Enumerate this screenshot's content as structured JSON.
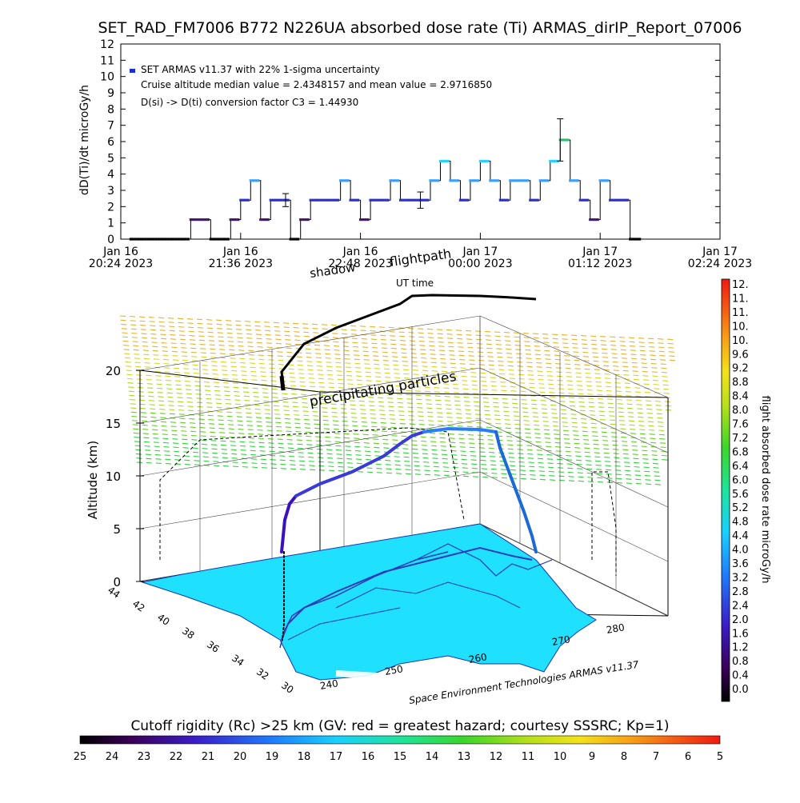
{
  "title": "SET_RAD_FM7006  B772 N226UA absorbed dose rate (Ti) ARMAS_dirIP_Report_07006",
  "chart_data": [
    {
      "type": "line",
      "title": "SET_RAD_FM7006  B772 N226UA absorbed dose rate (Ti) ARMAS_dirIP_Report_07006",
      "ylabel": "dD(Ti)/dt microGy/h",
      "xlabel": "UT time",
      "ylim": [
        0,
        12
      ],
      "y_ticks": [
        "0",
        "1",
        "2",
        "3",
        "4",
        "5",
        "6",
        "7",
        "8",
        "9",
        "10",
        "11",
        "12"
      ],
      "x_ticks": [
        {
          "date": "Jan 16",
          "time": "20:24 2023"
        },
        {
          "date": "Jan 16",
          "time": "21:36 2023"
        },
        {
          "date": "Jan 16",
          "time": "22:48 2023"
        },
        {
          "date": "Jan 17",
          "time": "00:00 2023"
        },
        {
          "date": "Jan 17",
          "time": "01:12 2023"
        },
        {
          "date": "Jan 17",
          "time": "02:24 2023"
        }
      ],
      "xlim_hours": [
        20.4,
        26.4
      ],
      "legend": [
        "SET ARMAS v11.37 with 22% 1-sigma uncertainty",
        "Cruise altitude median value = 2.4348157 and mean value = 2.9716850",
        "D(si) -> D(ti) conversion factor C3 = 1.44930"
      ],
      "series": [
        {
          "x": [
            20.5,
            20.6,
            20.7,
            20.8,
            20.9,
            21.0,
            21.1,
            21.2,
            21.3,
            21.4,
            21.5,
            21.6,
            21.7,
            21.8,
            21.9,
            22.0,
            22.1,
            22.2,
            22.3,
            22.4,
            22.5,
            22.6,
            22.7,
            22.8,
            22.9,
            23.0,
            23.1,
            23.2,
            23.3,
            23.4,
            23.5,
            23.6,
            23.7,
            23.8,
            23.9,
            24.0,
            24.1,
            24.2,
            24.3,
            24.4,
            24.5,
            24.6,
            24.7,
            24.8,
            24.9,
            25.0,
            25.1,
            25.2,
            25.3,
            25.5
          ],
          "values": [
            0,
            0,
            0,
            0,
            0,
            0,
            1.2,
            1.2,
            0,
            0,
            1.2,
            2.4,
            3.6,
            1.2,
            2.4,
            2.4,
            0,
            1.2,
            2.4,
            2.4,
            2.4,
            3.6,
            2.4,
            1.2,
            2.4,
            2.4,
            3.6,
            2.4,
            2.4,
            2.4,
            3.6,
            4.8,
            3.6,
            2.4,
            3.6,
            4.8,
            3.6,
            2.4,
            3.6,
            3.6,
            2.4,
            3.6,
            4.8,
            6.1,
            3.6,
            2.4,
            1.2,
            3.6,
            2.4,
            0
          ]
        }
      ],
      "error_bars": [
        {
          "x": 23.4,
          "y": 2.4,
          "err": 0.5
        },
        {
          "x": 24.8,
          "y": 6.1,
          "err": 1.3
        },
        {
          "x": 22.05,
          "y": 2.4,
          "err": 0.4
        }
      ]
    },
    {
      "type": "3d-flightpath",
      "zlabel": "Altitude (km)",
      "z_ticks": [
        "0",
        "5",
        "10",
        "15",
        "20"
      ],
      "lat_ticks": [
        "44",
        "42",
        "40",
        "38",
        "36",
        "34",
        "32",
        "30"
      ],
      "lon_ticks": [
        "240",
        "250",
        "260",
        "270",
        "280"
      ],
      "labels": {
        "shadow": "shadow",
        "flightpath": "flightpath",
        "ut_time": "UT time",
        "precipitating": "precipitating particles",
        "credit": "Space Environment Technologies ARMAS v11.37"
      },
      "colorbar": {
        "label": "flight absorbed dose rate microGy/h",
        "ticks": [
          "12.",
          "11.",
          "11.",
          "10.",
          "10.",
          "9.6",
          "9.2",
          "8.8",
          "8.4",
          "8.0",
          "7.6",
          "7.2",
          "6.8",
          "6.4",
          "6.0",
          "5.6",
          "5.2",
          "4.8",
          "4.4",
          "4.0",
          "3.6",
          "3.2",
          "2.8",
          "2.4",
          "2.0",
          "1.6",
          "1.2",
          "0.8",
          "0.4",
          "0.0"
        ]
      }
    },
    {
      "type": "colorbar",
      "title": "Cutoff rigidity (Rc) >25 km (GV: red = greatest hazard; courtesy SSSRC; Kp=1)",
      "ticks": [
        "25",
        "24",
        "23",
        "22",
        "21",
        "20",
        "19",
        "18",
        "17",
        "16",
        "15",
        "14",
        "13",
        "12",
        "11",
        "10",
        "9",
        "8",
        "7",
        "6",
        "5"
      ]
    }
  ]
}
